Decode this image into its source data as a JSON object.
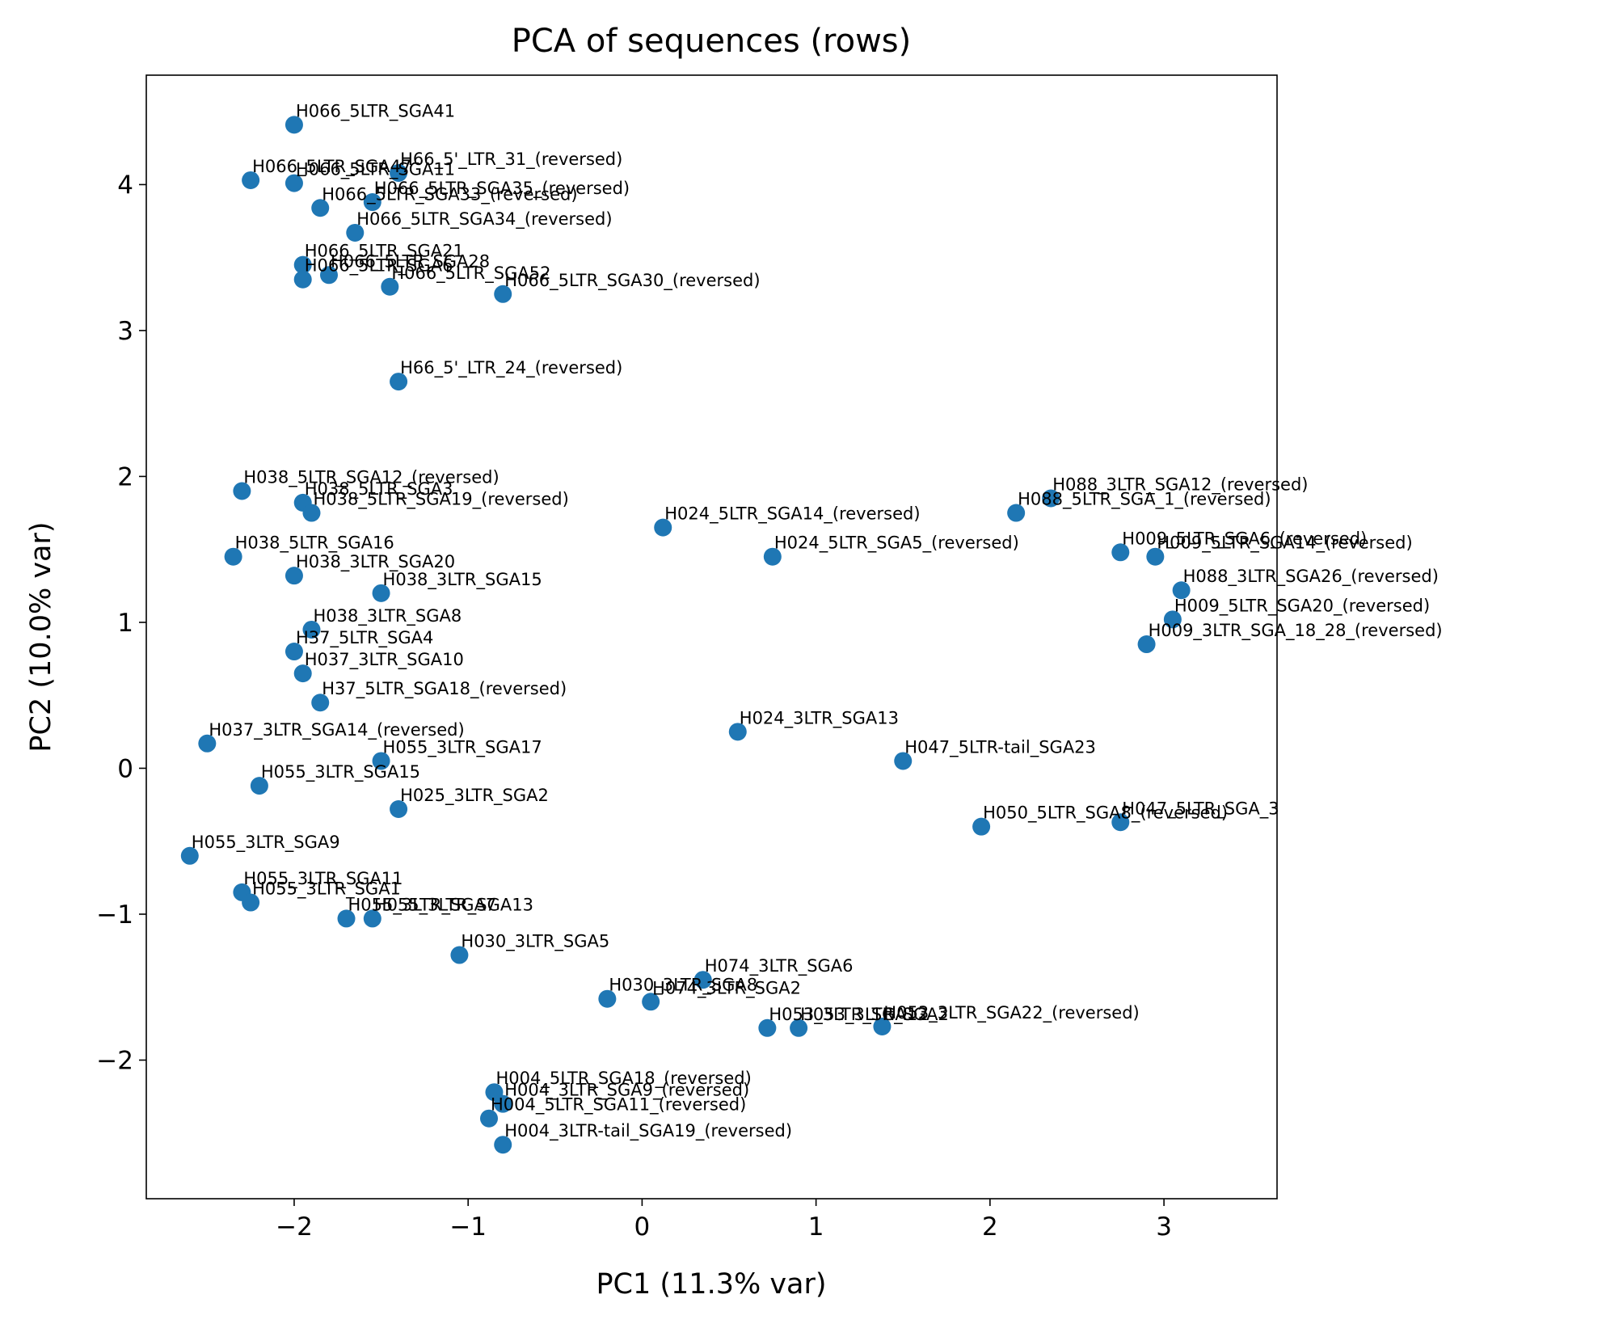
{
  "chart_data": {
    "type": "scatter",
    "title": "PCA of sequences (rows)",
    "xlabel": "PC1 (11.3% var)",
    "ylabel": "PC2 (10.0% var)",
    "xlim": [
      -2.85,
      3.65
    ],
    "ylim": [
      -2.95,
      4.75
    ],
    "xticks": [
      -2,
      -1,
      0,
      1,
      2,
      3
    ],
    "yticks": [
      -2,
      -1,
      0,
      1,
      2,
      3,
      4
    ],
    "xtick_labels": [
      "−2",
      "−1",
      "0",
      "1",
      "2",
      "3"
    ],
    "ytick_labels": [
      "−2",
      "−1",
      "0",
      "1",
      "2",
      "3",
      "4"
    ],
    "grid": false,
    "legend": "none",
    "marker_color": "#1f77b4",
    "points": [
      {
        "x": -2.0,
        "y": 4.41,
        "label": "H066_5LTR_SGA41"
      },
      {
        "x": -2.25,
        "y": 4.03,
        "label": "H066_5LTR_SGA47"
      },
      {
        "x": -2.0,
        "y": 4.01,
        "label": "H066_5LTR_SGA11"
      },
      {
        "x": -1.4,
        "y": 4.08,
        "label": "H66_5'_LTR_31_(reversed)"
      },
      {
        "x": -1.85,
        "y": 3.84,
        "label": "H066_5LTR_SGA33_(reversed)"
      },
      {
        "x": -1.55,
        "y": 3.88,
        "label": "H066_5LTR_SGA35_(reversed)"
      },
      {
        "x": -1.65,
        "y": 3.67,
        "label": "H066_5LTR_SGA34_(reversed)"
      },
      {
        "x": -1.95,
        "y": 3.45,
        "label": "H066_5LTR_SGA21"
      },
      {
        "x": -1.95,
        "y": 3.35,
        "label": "H066_5LTR_SGA6"
      },
      {
        "x": -1.8,
        "y": 3.38,
        "label": "H066_5LTR_SGA28"
      },
      {
        "x": -1.45,
        "y": 3.3,
        "label": "H066_5LTR_SGA52"
      },
      {
        "x": -0.8,
        "y": 3.25,
        "label": "H066_5LTR_SGA30_(reversed)"
      },
      {
        "x": -1.4,
        "y": 2.65,
        "label": "H66_5'_LTR_24_(reversed)"
      },
      {
        "x": -2.3,
        "y": 1.9,
        "label": "H038_5LTR_SGA12_(reversed)"
      },
      {
        "x": -1.95,
        "y": 1.82,
        "label": "H038_5LTR_SGA3"
      },
      {
        "x": -1.9,
        "y": 1.75,
        "label": "H038_5LTR_SGA19_(reversed)"
      },
      {
        "x": -2.35,
        "y": 1.45,
        "label": "H038_5LTR_SGA16"
      },
      {
        "x": -2.0,
        "y": 1.32,
        "label": "H038_3LTR_SGA20"
      },
      {
        "x": -1.5,
        "y": 1.2,
        "label": "H038_3LTR_SGA15"
      },
      {
        "x": -1.9,
        "y": 0.95,
        "label": "H038_3LTR_SGA8"
      },
      {
        "x": -2.0,
        "y": 0.8,
        "label": "H37_5LTR_SGA4"
      },
      {
        "x": -1.95,
        "y": 0.65,
        "label": "H037_3LTR_SGA10"
      },
      {
        "x": -1.85,
        "y": 0.45,
        "label": "H37_5LTR_SGA18_(reversed)"
      },
      {
        "x": 0.12,
        "y": 1.65,
        "label": "H024_5LTR_SGA14_(reversed)"
      },
      {
        "x": 0.75,
        "y": 1.45,
        "label": "H024_5LTR_SGA5_(reversed)"
      },
      {
        "x": 2.15,
        "y": 1.75,
        "label": "H088_5LTR_SGA_1_(reversed)"
      },
      {
        "x": 2.35,
        "y": 1.85,
        "label": "H088_3LTR_SGA12_(reversed)"
      },
      {
        "x": 2.75,
        "y": 1.48,
        "label": "H009_5LTR_SGA6_(reversed)"
      },
      {
        "x": 2.95,
        "y": 1.45,
        "label": "H009_5LTR_SGA14_(reversed)"
      },
      {
        "x": 3.1,
        "y": 1.22,
        "label": "H088_3LTR_SGA26_(reversed)"
      },
      {
        "x": 3.05,
        "y": 1.02,
        "label": "H009_5LTR_SGA20_(reversed)"
      },
      {
        "x": 2.9,
        "y": 0.85,
        "label": "H009_3LTR_SGA_18_28_(reversed)"
      },
      {
        "x": -2.5,
        "y": 0.17,
        "label": "H037_3LTR_SGA14_(reversed)"
      },
      {
        "x": -2.2,
        "y": -0.12,
        "label": "H055_3LTR_SGA15"
      },
      {
        "x": -1.5,
        "y": 0.05,
        "label": "H055_3LTR_SGA17"
      },
      {
        "x": -1.4,
        "y": -0.28,
        "label": "H025_3LTR_SGA2"
      },
      {
        "x": 0.55,
        "y": 0.25,
        "label": "H024_3LTR_SGA13"
      },
      {
        "x": 1.5,
        "y": 0.05,
        "label": "H047_5LTR-tail_SGA23"
      },
      {
        "x": 1.95,
        "y": -0.4,
        "label": "H050_5LTR_SGA8_(reversed)"
      },
      {
        "x": 2.75,
        "y": -0.37,
        "label": "H047_5LTR_SGA_3"
      },
      {
        "x": -2.6,
        "y": -0.6,
        "label": "H055_3LTR_SGA9"
      },
      {
        "x": -2.3,
        "y": -0.85,
        "label": "H055_3LTR_SGA11"
      },
      {
        "x": -2.25,
        "y": -0.92,
        "label": "H055_3LTR_SGA1"
      },
      {
        "x": -1.7,
        "y": -1.03,
        "label": "H055_3LTR_SGA7"
      },
      {
        "x": -1.55,
        "y": -1.03,
        "label": "H055_3LTR_SGA13"
      },
      {
        "x": -1.05,
        "y": -1.28,
        "label": "H030_3LTR_SGA5"
      },
      {
        "x": -0.2,
        "y": -1.58,
        "label": "H030_3LTR_SGA8"
      },
      {
        "x": 0.05,
        "y": -1.6,
        "label": "H074_3LTR_SGA2"
      },
      {
        "x": 0.35,
        "y": -1.45,
        "label": "H074_3LTR_SGA6"
      },
      {
        "x": 0.72,
        "y": -1.78,
        "label": "H053_3LTR_SGA12"
      },
      {
        "x": 0.9,
        "y": -1.78,
        "label": "H053_3LTR_SGA2"
      },
      {
        "x": 1.38,
        "y": -1.77,
        "label": "H053_3LTR_SGA22_(reversed)"
      },
      {
        "x": -0.85,
        "y": -2.22,
        "label": "H004_5LTR_SGA18_(reversed)"
      },
      {
        "x": -0.8,
        "y": -2.3,
        "label": "H004_3LTR_SGA9_(reversed)"
      },
      {
        "x": -0.88,
        "y": -2.4,
        "label": "H004_5LTR_SGA11_(reversed)"
      },
      {
        "x": -0.8,
        "y": -2.58,
        "label": "H004_3LTR-tail_SGA19_(reversed)"
      }
    ]
  }
}
